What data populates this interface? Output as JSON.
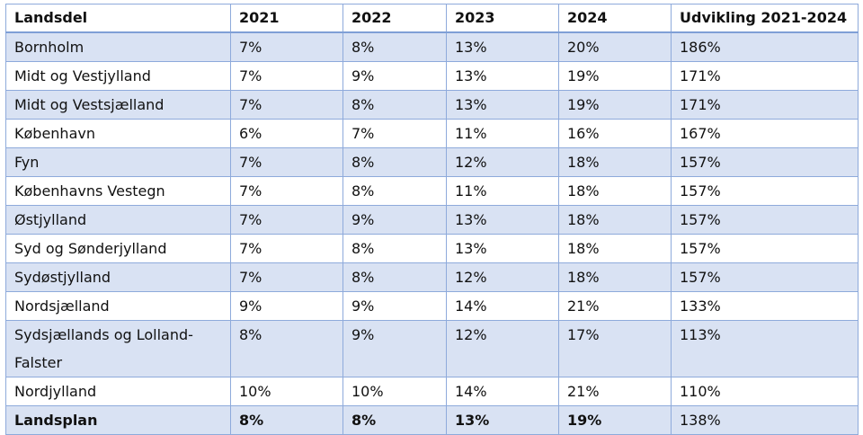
{
  "table": {
    "headers": [
      "Landsdel",
      "2021",
      "2022",
      "2023",
      "2024",
      "Udvikling 2021-2024"
    ],
    "rows": [
      [
        "Bornholm",
        "7%",
        "8%",
        "13%",
        "20%",
        "186%"
      ],
      [
        "Midt og Vestjylland",
        "7%",
        "9%",
        "13%",
        "19%",
        "171%"
      ],
      [
        "Midt og Vestsjælland",
        "7%",
        "8%",
        "13%",
        "19%",
        "171%"
      ],
      [
        "København",
        "6%",
        "7%",
        "11%",
        "16%",
        "167%"
      ],
      [
        "Fyn",
        "7%",
        "8%",
        "12%",
        "18%",
        "157%"
      ],
      [
        "Københavns Vestegn",
        "7%",
        "8%",
        "11%",
        "18%",
        "157%"
      ],
      [
        "Østjylland",
        "7%",
        "9%",
        "13%",
        "18%",
        "157%"
      ],
      [
        "Syd og Sønderjylland",
        "7%",
        "8%",
        "13%",
        "18%",
        "157%"
      ],
      [
        "Sydøstjylland",
        "7%",
        "8%",
        "12%",
        "18%",
        "157%"
      ],
      [
        "Nordsjælland",
        "9%",
        "9%",
        "14%",
        "21%",
        "133%"
      ],
      [
        "Sydsjællands og Lolland-Falster",
        "8%",
        "9%",
        "12%",
        "17%",
        "113%"
      ],
      [
        "Nordjylland",
        "10%",
        "10%",
        "14%",
        "21%",
        "110%"
      ],
      [
        "Landsplan",
        "8%",
        "8%",
        "13%",
        "19%",
        "138%"
      ]
    ]
  },
  "colors": {
    "band": "#d9e2f3",
    "border": "#8eaadb"
  }
}
